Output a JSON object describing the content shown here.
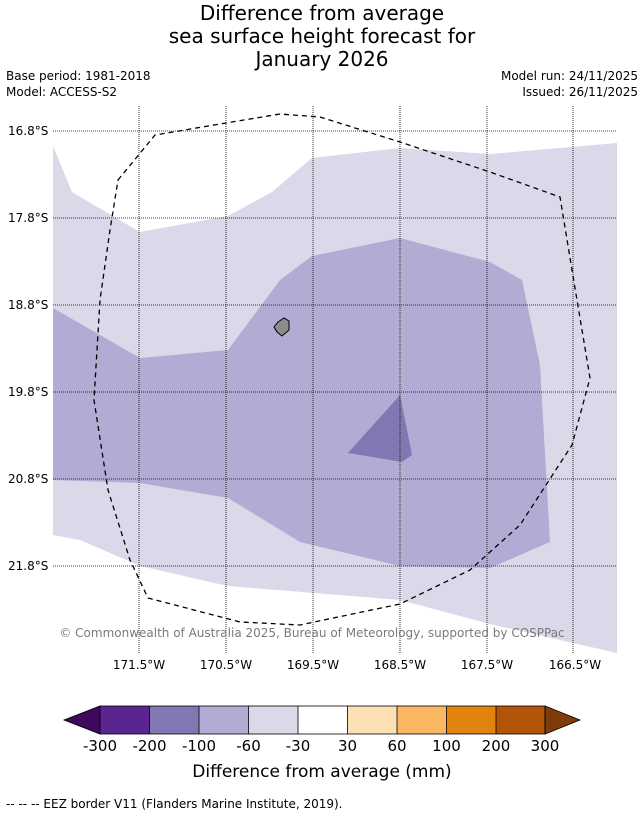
{
  "title": {
    "line1": "Difference from average",
    "line2": "sea surface height forecast for",
    "line3": "January 2026"
  },
  "meta": {
    "base_period": "Base period: 1981-2018",
    "model": "Model: ACCESS-S2",
    "model_run": "Model run: 24/11/2025",
    "issued": "Issued: 26/11/2025"
  },
  "map": {
    "lat_labels": [
      "16.8°S",
      "17.8°S",
      "18.8°S",
      "19.8°S",
      "20.8°S",
      "21.8°S"
    ],
    "lon_labels": [
      "171.5°W",
      "170.5°W",
      "169.5°W",
      "168.5°W",
      "167.5°W",
      "166.5°W"
    ],
    "copyright": "© Commonwealth of Australia 2025, Bureau of Meteorology, supported by COSPPac",
    "colors": {
      "light": "#d9d9ea",
      "medium": "#b1acd3",
      "dark": "#8177b3",
      "land": "#8c8c8c"
    }
  },
  "colorbar": {
    "ticks": [
      "-300",
      "-200",
      "-100",
      "-60",
      "-30",
      "30",
      "60",
      "100",
      "200",
      "300"
    ],
    "colors": [
      "#3f0a5e",
      "#5a2590",
      "#8177b3",
      "#b1acd3",
      "#d9d9ea",
      "#ffffff",
      "#fde0b6",
      "#fbb661",
      "#e2820f",
      "#b25506",
      "#7f3b08"
    ],
    "label": "Difference from average (mm)"
  },
  "footnote": "--  --  -- EEZ border V11 (Flanders Marine Institute, 2019)."
}
